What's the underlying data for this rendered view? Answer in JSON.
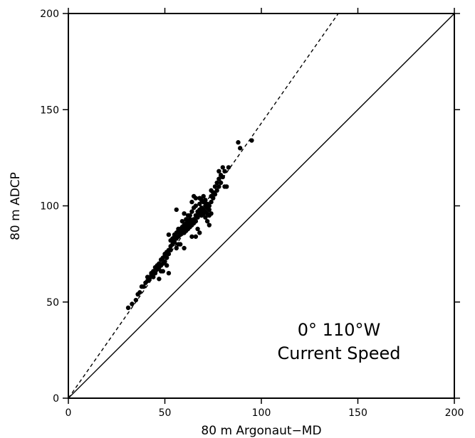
{
  "chart_data": {
    "type": "scatter",
    "xlabel": "80 m Argonaut−MD",
    "ylabel": "80 m ADCP",
    "xlim": [
      0,
      200
    ],
    "ylim": [
      0,
      200
    ],
    "xticks": [
      "0",
      "50",
      "100",
      "150",
      "200"
    ],
    "yticks": [
      "0",
      "50",
      "100",
      "150",
      "200"
    ],
    "annotation": [
      "0° 110°W",
      "Current Speed"
    ],
    "grid": false,
    "reference_lines": [
      {
        "style": "solid",
        "slope": 1.0,
        "intercept": 0
      },
      {
        "style": "dashed",
        "slope": 1.43,
        "intercept": 0
      }
    ],
    "series": [
      {
        "x": [
          31,
          33,
          35,
          36,
          37,
          38,
          39,
          40,
          41,
          41,
          42,
          43,
          43,
          44,
          44,
          45,
          45,
          46,
          46,
          47,
          47,
          47,
          48,
          48,
          48,
          49,
          49,
          49,
          50,
          50,
          50,
          51,
          51,
          51,
          52,
          52,
          52,
          53,
          53,
          53,
          54,
          54,
          54,
          55,
          55,
          55,
          56,
          56,
          56,
          57,
          57,
          57,
          58,
          58,
          58,
          58,
          59,
          59,
          59,
          60,
          60,
          60,
          60,
          61,
          61,
          61,
          61,
          62,
          62,
          62,
          62,
          63,
          63,
          63,
          63,
          64,
          64,
          64,
          64,
          65,
          65,
          65,
          65,
          66,
          66,
          66,
          66,
          67,
          67,
          67,
          68,
          68,
          68,
          68,
          69,
          69,
          69,
          69,
          70,
          70,
          70,
          70,
          71,
          71,
          71,
          71,
          72,
          72,
          72,
          72,
          73,
          73,
          73,
          73,
          74,
          74,
          74,
          75,
          75,
          76,
          76,
          77,
          77,
          78,
          78,
          78,
          79,
          79,
          80,
          80,
          81,
          81,
          82,
          83,
          88,
          89,
          95,
          56,
          57,
          64,
          66,
          74,
          52,
          60,
          68
        ],
        "y": [
          47,
          49,
          51,
          54,
          55,
          58,
          58,
          60,
          61,
          63,
          62,
          64,
          65,
          63,
          66,
          65,
          68,
          67,
          69,
          68,
          70,
          62,
          69,
          72,
          66,
          70,
          73,
          66,
          71,
          74,
          75,
          73,
          76,
          69,
          75,
          77,
          65,
          77,
          79,
          82,
          80,
          82,
          83,
          81,
          84,
          85,
          83,
          86,
          78,
          84,
          87,
          88,
          85,
          86,
          88,
          80,
          87,
          89,
          92,
          86,
          88,
          90,
          96,
          87,
          89,
          91,
          93,
          88,
          90,
          92,
          95,
          89,
          91,
          93,
          95,
          90,
          92,
          97,
          102,
          91,
          93,
          99,
          105,
          92,
          95,
          100,
          104,
          94,
          97,
          88,
          96,
          98,
          101,
          104,
          95,
          97,
          99,
          103,
          96,
          98,
          102,
          105,
          94,
          97,
          100,
          103,
          92,
          96,
          99,
          101,
          90,
          95,
          100,
          98,
          102,
          105,
          108,
          104,
          107,
          106,
          110,
          108,
          112,
          110,
          114,
          118,
          112,
          116,
          115,
          120,
          110,
          118,
          110,
          120,
          133,
          130,
          134,
          98,
          80,
          84,
          84,
          96,
          85,
          78,
          86
        ]
      }
    ]
  }
}
